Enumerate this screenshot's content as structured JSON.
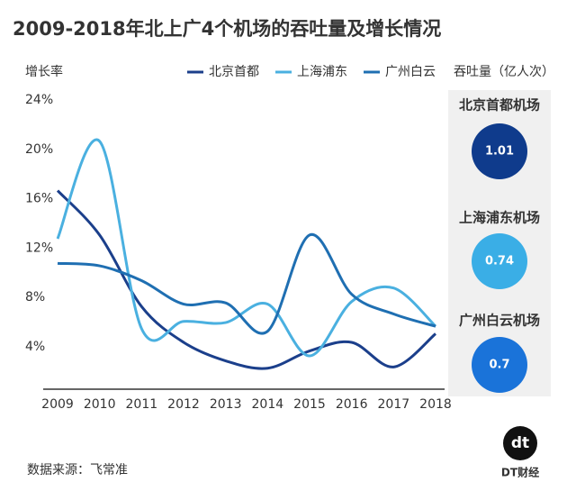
{
  "chart_data": {
    "type": "line",
    "title": "2009-2018年北上广4个机场的吞吐量及增长情况",
    "y_label": "增长率",
    "categories": [
      "2009",
      "2010",
      "2011",
      "2012",
      "2013",
      "2014",
      "2015",
      "2016",
      "2017",
      "2018"
    ],
    "series": [
      {
        "name": "北京首都",
        "color": "#1b3f8b",
        "values": [
          16.8,
          13.2,
          7.4,
          4.5,
          3.0,
          2.4,
          3.8,
          4.5,
          2.5,
          5.2
        ]
      },
      {
        "name": "上海浦东",
        "color": "#4ab0e0",
        "values": [
          12.9,
          20.8,
          5.6,
          6.2,
          6.1,
          7.6,
          3.4,
          7.8,
          8.9,
          5.8
        ]
      },
      {
        "name": "广州白云",
        "color": "#1f6fb2",
        "values": [
          10.9,
          10.7,
          9.5,
          7.6,
          7.7,
          5.4,
          13.2,
          8.4,
          6.8,
          5.8
        ]
      }
    ],
    "ylim": [
      0.7,
      24
    ],
    "yticks": [
      {
        "value": 4,
        "label": "4%"
      },
      {
        "value": 8,
        "label": "8%"
      },
      {
        "value": 12,
        "label": "12%"
      },
      {
        "value": 16,
        "label": "16%"
      },
      {
        "value": 20,
        "label": "20%"
      },
      {
        "value": 24,
        "label": "24%"
      }
    ],
    "grid": false,
    "legend": "top"
  },
  "side_panel": {
    "title": "吞吐量（亿人次）",
    "items": [
      {
        "name": "北京首都机场",
        "value": 1.01,
        "color": "#0f3b8c"
      },
      {
        "name": "上海浦东机场",
        "value": 0.74,
        "color": "#3aaee6"
      },
      {
        "name": "广州白云机场",
        "value": 0.7,
        "color": "#1a73d9"
      }
    ]
  },
  "footer": {
    "source": "数据来源：飞常准",
    "logo_icon": "dt",
    "logo_text": "DT财经"
  }
}
